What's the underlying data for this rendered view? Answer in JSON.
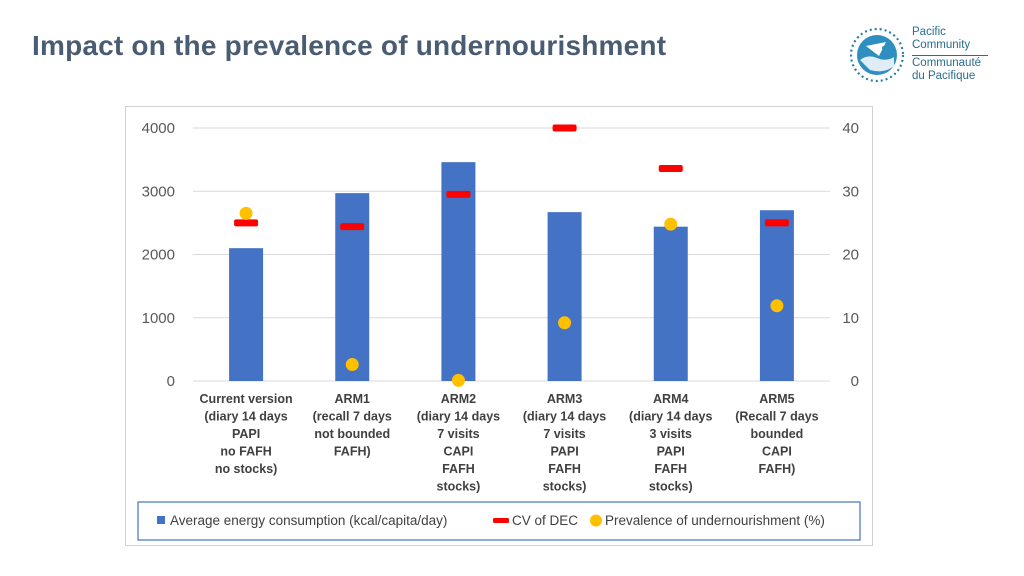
{
  "slide": {
    "title": "Impact on the prevalence of undernourishment"
  },
  "logo": {
    "line1": "Pacific",
    "line2": "Community",
    "line3": "Communauté",
    "line4": "du Pacifique"
  },
  "colors": {
    "title": "#4a5c73",
    "bar": "#4472c4",
    "dash": "#ff0000",
    "dot": "#ffc000",
    "legend_border": "#4472c4"
  },
  "chart_data": {
    "type": "bar",
    "title": "",
    "categories": [
      [
        "Current version",
        "(diary 14 days",
        "PAPI",
        "no FAFH",
        "no stocks)"
      ],
      [
        "ARM1",
        "(recall 7 days",
        "not bounded",
        "FAFH)"
      ],
      [
        "ARM2",
        "(diary 14 days",
        "7 visits",
        "CAPI",
        "FAFH",
        "stocks)"
      ],
      [
        "ARM3",
        "(diary 14 days",
        "7 visits",
        "PAPI",
        "FAFH",
        "stocks)"
      ],
      [
        "ARM4",
        "(diary 14 days",
        "3 visits",
        "PAPI",
        "FAFH",
        "stocks)"
      ],
      [
        "ARM5",
        "(Recall 7 days",
        "bounded",
        "CAPI",
        "FAFH)"
      ]
    ],
    "y_left": {
      "ticks": [
        "0",
        "1000",
        "2000",
        "3000",
        "4000"
      ],
      "ylim": [
        0,
        4000
      ]
    },
    "y_right": {
      "ticks": [
        "0",
        "10",
        "20",
        "30",
        "40"
      ],
      "ylim": [
        0,
        40
      ]
    },
    "series": [
      {
        "name": "Average energy consumption (kcal/capita/day)",
        "type": "bar",
        "axis": "left",
        "values": [
          2100,
          2970,
          3460,
          2670,
          2440,
          2700
        ]
      },
      {
        "name": "CV of DEC",
        "type": "dash",
        "axis": "right",
        "values": [
          25.0,
          24.4,
          29.5,
          40.0,
          33.6,
          25.0
        ]
      },
      {
        "name": "Prevalence of undernourishment (%)",
        "type": "dot",
        "axis": "right",
        "values": [
          26.5,
          2.6,
          0.1,
          9.2,
          24.8,
          11.9
        ]
      }
    ],
    "legend": "bottom",
    "grid": true
  }
}
